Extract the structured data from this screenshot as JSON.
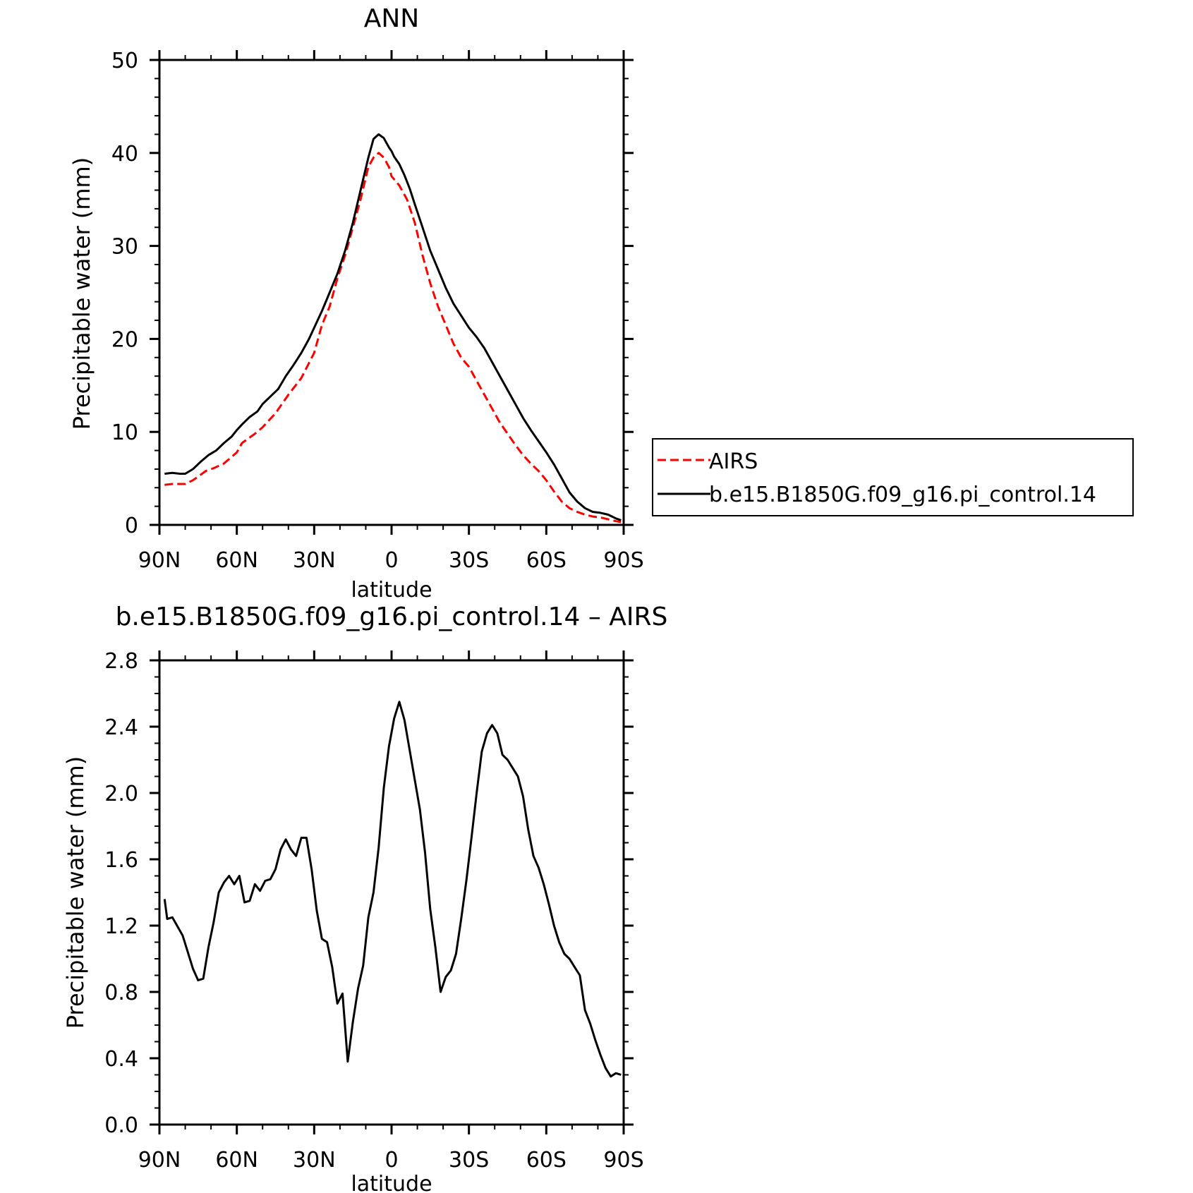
{
  "chart_data": [
    {
      "type": "line",
      "title": "ANN",
      "xlabel": "latitude",
      "ylabel": "Precipitable water (mm)",
      "xlim": [
        90,
        -90
      ],
      "ylim": [
        0,
        50
      ],
      "x_ticks": [
        90,
        60,
        30,
        0,
        -30,
        -60,
        -90
      ],
      "x_tick_labels": [
        "90N",
        "60N",
        "30N",
        "0",
        "30S",
        "60S",
        "90S"
      ],
      "y_ticks": [
        0,
        10,
        20,
        30,
        40,
        50
      ],
      "y_tick_labels": [
        "0",
        "10",
        "20",
        "30",
        "40",
        "50"
      ],
      "legend": {
        "placement": "right",
        "entries": [
          {
            "label": "AIRS",
            "color": "#ff0000",
            "dash": "dashed"
          },
          {
            "label": "b.e15.B1850G.f09_g16.pi_control.14",
            "color": "#000000",
            "dash": "solid"
          }
        ]
      },
      "series": [
        {
          "name": "AIRS",
          "color": "#ff0000",
          "x": [
            88,
            85,
            80,
            77,
            72,
            69,
            65,
            60,
            58,
            53,
            50,
            45,
            40,
            35,
            30,
            27,
            24,
            21,
            18,
            15,
            12,
            9,
            7,
            5,
            3,
            1,
            0,
            -3,
            -6,
            -9,
            -12,
            -15,
            -18,
            -21,
            -24,
            -27,
            -30,
            -33,
            -36,
            -39,
            -42,
            -45,
            -48,
            -51,
            -54,
            -57,
            -60,
            -63,
            -66,
            -69,
            -72,
            -75,
            -78,
            -81,
            -84,
            -87,
            -89
          ],
          "values": [
            4.3,
            4.4,
            4.4,
            4.8,
            5.8,
            6.1,
            6.6,
            7.8,
            8.8,
            9.8,
            10.5,
            12,
            14,
            15.8,
            18.5,
            21.5,
            23.5,
            26.5,
            29,
            32,
            35,
            38.5,
            39.5,
            40,
            39.5,
            38.5,
            37.5,
            36.5,
            35,
            32.5,
            29,
            26,
            23.5,
            21.5,
            19.5,
            18,
            17,
            15.5,
            14,
            12.5,
            11,
            9.8,
            8.6,
            7.5,
            6.6,
            5.8,
            4.8,
            3.6,
            2.5,
            1.8,
            1.4,
            1.1,
            0.9,
            0.8,
            0.6,
            0.4,
            0.3
          ]
        },
        {
          "name": "b.e15.B1850G.f09_g16.pi_control.14",
          "color": "#000000",
          "x": [
            88,
            85,
            82,
            80,
            77,
            74,
            71,
            68,
            65,
            62,
            60,
            58,
            55,
            52,
            50,
            47,
            44,
            41,
            38,
            35,
            32,
            30,
            27,
            24,
            21,
            18,
            15,
            12,
            9,
            7,
            5,
            3,
            1,
            0,
            -1,
            -3,
            -5,
            -7,
            -9,
            -12,
            -15,
            -18,
            -21,
            -24,
            -27,
            -30,
            -33,
            -36,
            -39,
            -42,
            -45,
            -48,
            -51,
            -54,
            -57,
            -60,
            -63,
            -66,
            -69,
            -72,
            -75,
            -78,
            -81,
            -84,
            -87,
            -89
          ],
          "values": [
            5.5,
            5.6,
            5.5,
            5.5,
            6.0,
            6.8,
            7.5,
            8.0,
            8.8,
            9.5,
            10.2,
            10.8,
            11.6,
            12.2,
            13,
            13.8,
            14.6,
            16,
            17.2,
            18.5,
            20,
            21.2,
            23,
            25,
            27,
            29.5,
            32.5,
            36,
            39.5,
            41.5,
            42,
            41.6,
            40.6,
            40.2,
            39.6,
            38.8,
            37.6,
            36.2,
            34.5,
            32,
            29.5,
            27.5,
            25.5,
            23.8,
            22.5,
            21.2,
            20.2,
            19,
            17.5,
            16,
            14.5,
            13,
            11.5,
            10.2,
            9,
            7.8,
            6.5,
            5,
            3.5,
            2.5,
            1.8,
            1.4,
            1.3,
            1.1,
            0.7,
            0.5
          ]
        }
      ]
    },
    {
      "type": "line",
      "title": "b.e15.B1850G.f09_g16.pi_control.14 – AIRS",
      "xlabel": "latitude",
      "ylabel": "Precipitable water (mm)",
      "xlim": [
        90,
        -90
      ],
      "ylim": [
        0,
        2.8
      ],
      "x_ticks": [
        90,
        60,
        30,
        0,
        -30,
        -60,
        -90
      ],
      "x_tick_labels": [
        "90N",
        "60N",
        "30N",
        "0",
        "30S",
        "60S",
        "90S"
      ],
      "y_ticks": [
        0,
        0.4,
        0.8,
        1.2,
        1.6,
        2.0,
        2.4,
        2.8
      ],
      "y_tick_labels": [
        "0.0",
        "0.4",
        "0.8",
        "1.2",
        "1.6",
        "2.0",
        "2.4",
        "2.8"
      ],
      "series": [
        {
          "color": "#000000",
          "x": [
            88,
            87,
            85,
            81,
            77,
            75,
            73,
            71,
            69,
            67,
            65,
            63,
            61,
            59,
            57,
            55,
            53,
            51,
            49,
            47,
            45,
            43,
            41,
            39,
            37,
            35,
            33,
            31,
            29,
            27,
            25,
            23,
            21,
            19,
            17,
            15,
            13,
            11,
            9,
            7,
            5,
            3,
            1,
            -1,
            -3,
            -5,
            -7,
            -9,
            -11,
            -13,
            -15,
            -17,
            -19,
            -21,
            -23,
            -25,
            -27,
            -29,
            -31,
            -33,
            -35,
            -37,
            -39,
            -41,
            -43,
            -45,
            -47,
            -49,
            -51,
            -53,
            -55,
            -57,
            -59,
            -61,
            -63,
            -65,
            -67,
            -69,
            -71,
            -73,
            -75,
            -77,
            -79,
            -81,
            -83,
            -85,
            -87,
            -89
          ],
          "values": [
            1.36,
            1.24,
            1.25,
            1.14,
            0.94,
            0.87,
            0.88,
            1.07,
            1.22,
            1.4,
            1.46,
            1.5,
            1.45,
            1.5,
            1.34,
            1.35,
            1.45,
            1.41,
            1.47,
            1.48,
            1.54,
            1.66,
            1.72,
            1.66,
            1.62,
            1.73,
            1.73,
            1.54,
            1.29,
            1.12,
            1.1,
            0.95,
            0.73,
            0.79,
            0.38,
            0.62,
            0.82,
            0.96,
            1.25,
            1.4,
            1.67,
            2.03,
            2.28,
            2.45,
            2.55,
            2.44,
            2.26,
            2.08,
            1.9,
            1.64,
            1.3,
            1.07,
            0.8,
            0.89,
            0.93,
            1.03,
            1.24,
            1.47,
            1.73,
            2.0,
            2.25,
            2.36,
            2.41,
            2.36,
            2.23,
            2.2,
            2.15,
            2.1,
            1.98,
            1.78,
            1.62,
            1.55,
            1.45,
            1.33,
            1.2,
            1.1,
            1.03,
            1.0,
            0.95,
            0.9,
            0.69,
            0.61,
            0.51,
            0.42,
            0.34,
            0.29,
            0.31,
            0.3
          ]
        }
      ]
    }
  ]
}
